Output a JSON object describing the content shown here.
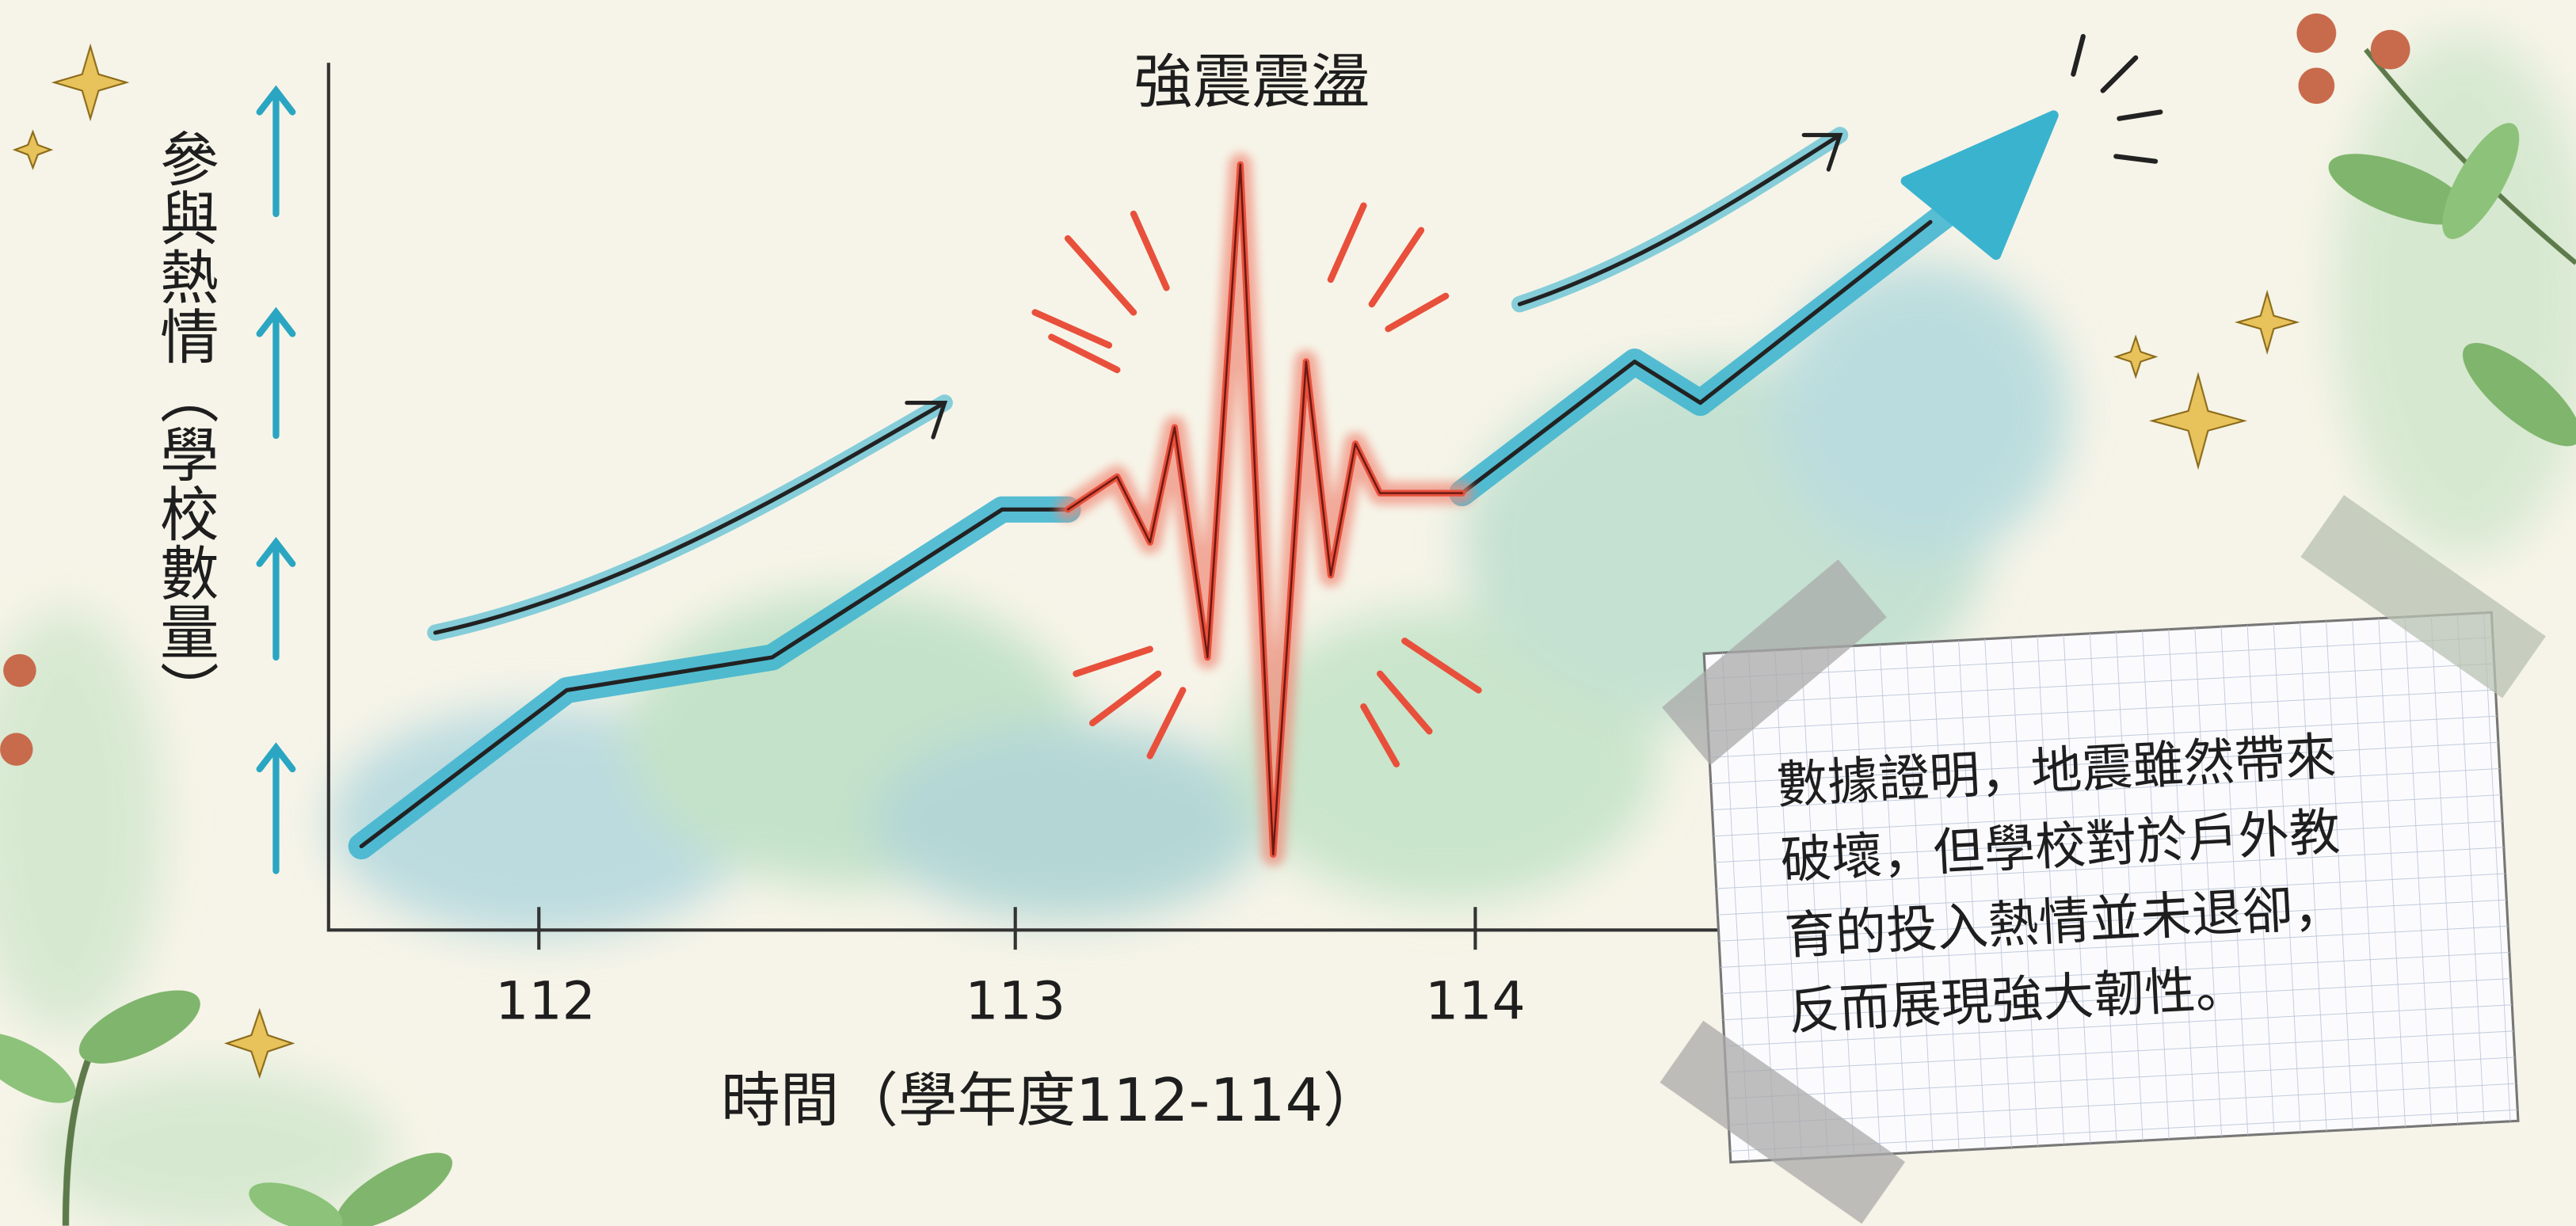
{
  "title": "強震震盪",
  "y_axis_label": "參與熱情（學校數量）",
  "x_axis_label": "時間（學年度112-114）",
  "x_ticks": [
    "112",
    "113",
    "114"
  ],
  "note": {
    "lines": [
      "數據證明，地震雖然帶來",
      "破壞，但學校對於戶外教",
      "育的投入熱情並未退卻，",
      "反而展現強大韌性。"
    ]
  }
}
